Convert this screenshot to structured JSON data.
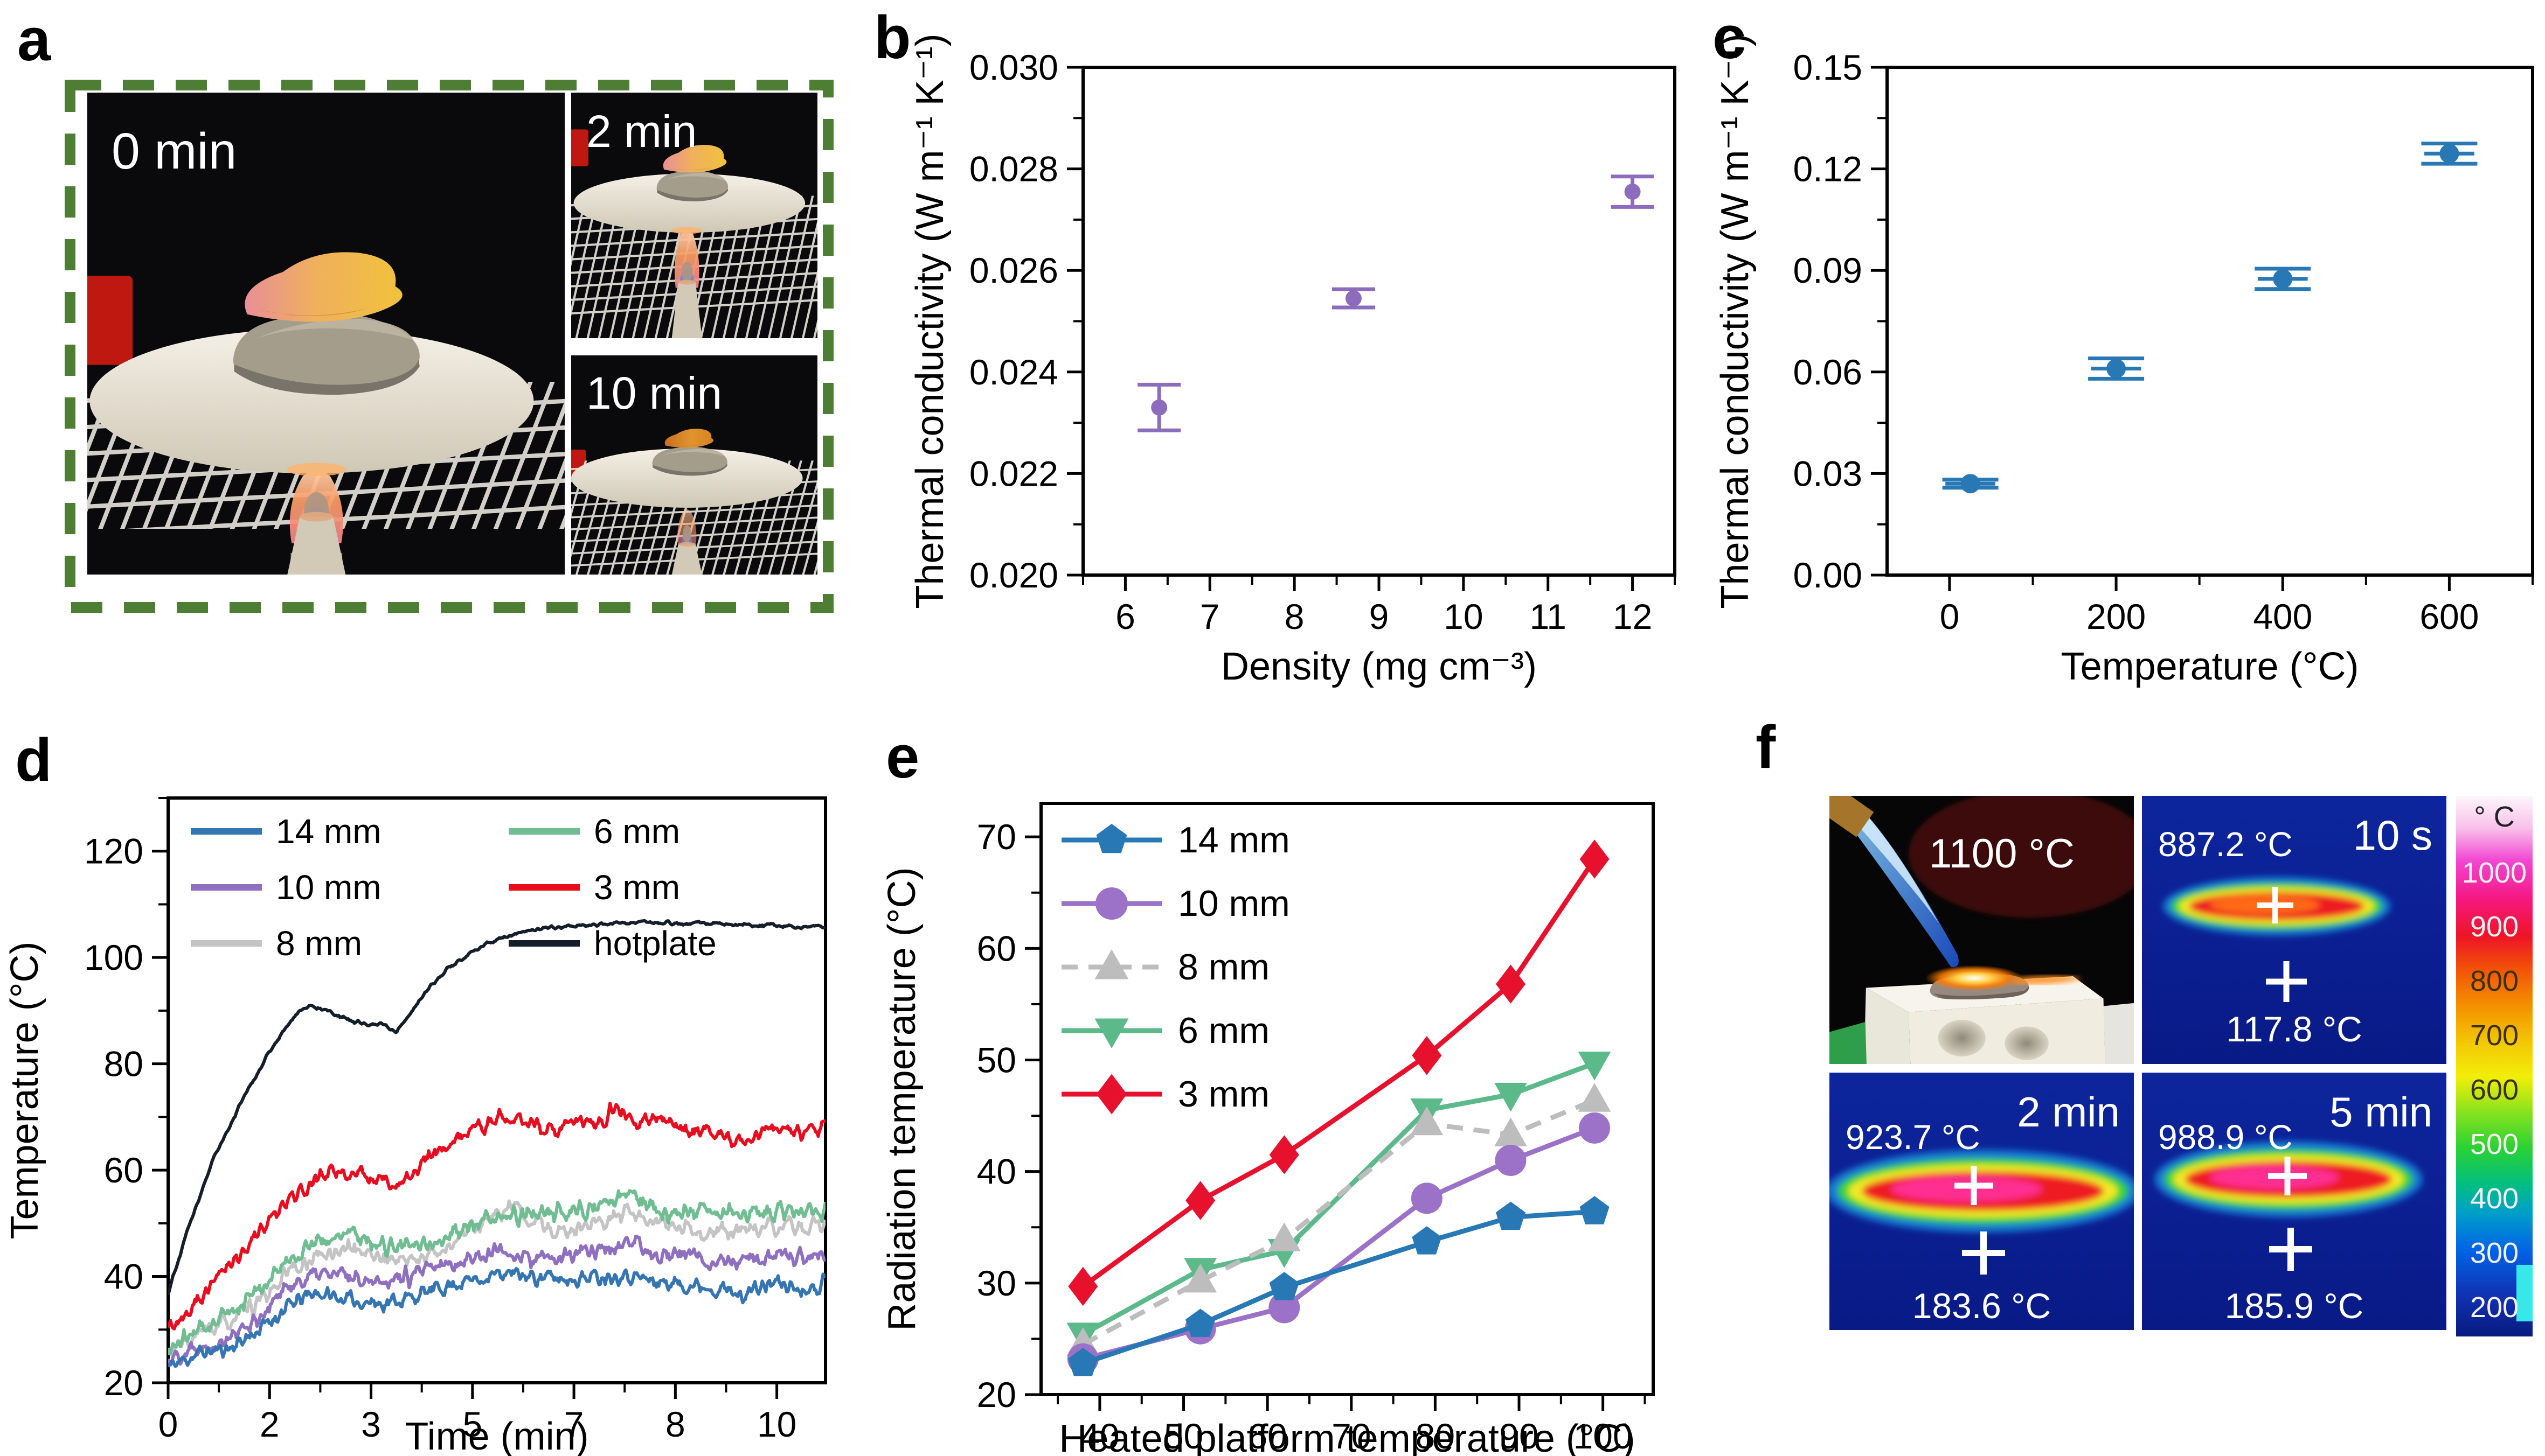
{
  "panels": {
    "a": {
      "letter": "a",
      "photos": [
        {
          "label": "0 min"
        },
        {
          "label": "2 min"
        },
        {
          "label": "10 min"
        }
      ]
    },
    "b": {
      "letter": "b"
    },
    "c": {
      "letter": "c"
    },
    "d": {
      "letter": "d"
    },
    "e": {
      "letter": "e"
    },
    "f": {
      "letter": "f",
      "flame_label": "1100 °C",
      "thermal": [
        {
          "time": "10 s",
          "spot_temp": "887.2 °C",
          "ref_temp": "117.8 °C"
        },
        {
          "time": "2 min",
          "spot_temp": "923.7 °C",
          "ref_temp": "183.6 °C"
        },
        {
          "time": "5 min",
          "spot_temp": "988.9 °C",
          "ref_temp": "185.9 °C"
        }
      ],
      "colorbar": {
        "unit": "° C",
        "ticks": [
          {
            "text": "1000",
            "tone": "light"
          },
          {
            "text": "900",
            "tone": "light"
          },
          {
            "text": "800",
            "tone": "dark"
          },
          {
            "text": "700",
            "tone": "dark"
          },
          {
            "text": "600",
            "tone": "dark"
          },
          {
            "text": "500",
            "tone": "light"
          },
          {
            "text": "400",
            "tone": "light"
          },
          {
            "text": "300",
            "tone": "light"
          },
          {
            "text": "200",
            "tone": "light"
          }
        ]
      }
    }
  },
  "chart_data": [
    {
      "id": "b",
      "type": "scatter",
      "xlabel": "Density (mg cm⁻³)",
      "ylabel": "Thermal conductivity (W m⁻¹ K⁻¹)",
      "xlim": [
        5.5,
        12.5
      ],
      "ylim": [
        0.02,
        0.03
      ],
      "xticks": [
        6,
        7,
        8,
        9,
        10,
        11,
        12
      ],
      "xminor": 0.5,
      "yticks": [
        0.02,
        0.022,
        0.024,
        0.026,
        0.028,
        0.03
      ],
      "ytick_labels": [
        "0.020",
        "0.022",
        "0.024",
        "0.026",
        "0.028",
        "0.030"
      ],
      "yminor": 0.001,
      "color": "#8d6cbd",
      "points": [
        {
          "x": 6.4,
          "y": 0.0233,
          "yerr": 0.00045
        },
        {
          "x": 8.7,
          "y": 0.02545,
          "yerr": 0.00018
        },
        {
          "x": 12.0,
          "y": 0.02755,
          "yerr": 0.0003
        }
      ]
    },
    {
      "id": "c",
      "type": "scatter",
      "xlabel": "Temperature (°C)",
      "ylabel": "Thermal conductivity (W m⁻¹ K⁻¹)",
      "xlim": [
        -75,
        700
      ],
      "ylim": [
        0,
        0.15
      ],
      "xticks": [
        0,
        200,
        400,
        600
      ],
      "xminor": 100,
      "yticks": [
        0,
        0.03,
        0.06,
        0.09,
        0.12,
        0.15
      ],
      "ytick_labels": [
        "0.00",
        "0.03",
        "0.06",
        "0.09",
        "0.12",
        "0.15"
      ],
      "yminor": 0.015,
      "color": "#2878b5",
      "points": [
        {
          "x": 25,
          "y": 0.027,
          "xerr": 30,
          "yerr": 0.0012
        },
        {
          "x": 200,
          "y": 0.061,
          "xerr": 30,
          "yerr": 0.003
        },
        {
          "x": 400,
          "y": 0.0875,
          "xerr": 30,
          "yerr": 0.003
        },
        {
          "x": 600,
          "y": 0.1245,
          "xerr": 30,
          "yerr": 0.003
        }
      ]
    },
    {
      "id": "d",
      "type": "line-noisy",
      "xlabel": "Time (min)",
      "ylabel": "Temperature (°C)",
      "xlim": [
        0,
        10.8
      ],
      "ylim": [
        20,
        130
      ],
      "xtick_positions": [
        0,
        1.6667,
        3.3333,
        5,
        6.6667,
        8.3333,
        10
      ],
      "xtick_labels": [
        "0",
        "2",
        "3",
        "5",
        "7",
        "8",
        "10"
      ],
      "xminor": 0.83333,
      "yticks": [
        20,
        40,
        60,
        80,
        100,
        120
      ],
      "yminor": 10,
      "legend_columns": [
        [
          "14 mm",
          "10 mm",
          "8 mm"
        ],
        [
          "6 mm",
          "3 mm",
          "hotplate"
        ]
      ],
      "series": [
        {
          "name": "8 mm",
          "color": "#c4c4c4",
          "noise": 2.4,
          "seed": 33,
          "keypoints": [
            [
              0,
              25.5
            ],
            [
              0.5,
              29
            ],
            [
              1,
              31.5
            ],
            [
              1.5,
              35
            ],
            [
              2,
              41
            ],
            [
              2.5,
              44
            ],
            [
              3,
              45.5
            ],
            [
              3.5,
              43.5
            ],
            [
              4,
              43
            ],
            [
              4.5,
              45
            ],
            [
              5,
              49
            ],
            [
              5.7,
              53
            ],
            [
              6,
              50
            ],
            [
              6.5,
              48.5
            ],
            [
              7,
              50
            ],
            [
              7.5,
              51.5
            ],
            [
              8,
              50
            ],
            [
              8.5,
              48.5
            ],
            [
              9,
              48
            ],
            [
              9.5,
              49
            ],
            [
              10,
              49
            ],
            [
              10.8,
              49.5
            ]
          ]
        },
        {
          "name": "10 mm",
          "color": "#8f6fc0",
          "noise": 2.4,
          "seed": 22,
          "keypoints": [
            [
              0,
              24.5
            ],
            [
              0.5,
              27
            ],
            [
              1,
              28.5
            ],
            [
              1.5,
              32.5
            ],
            [
              2,
              38.5
            ],
            [
              2.5,
              40.5
            ],
            [
              3,
              40
            ],
            [
              3.5,
              39.5
            ],
            [
              4,
              40
            ],
            [
              4.5,
              42
            ],
            [
              5,
              43.5
            ],
            [
              5.5,
              45
            ],
            [
              6,
              43
            ],
            [
              6.5,
              43.5
            ],
            [
              7,
              45
            ],
            [
              7.5,
              46
            ],
            [
              8,
              44.5
            ],
            [
              8.5,
              44
            ],
            [
              9,
              43
            ],
            [
              9.5,
              43
            ],
            [
              10,
              43.5
            ],
            [
              10.8,
              44
            ]
          ]
        },
        {
          "name": "14 mm",
          "color": "#3575b2",
          "noise": 2.2,
          "seed": 11,
          "keypoints": [
            [
              0,
              23
            ],
            [
              0.5,
              25.5
            ],
            [
              1,
              26.5
            ],
            [
              1.5,
              30
            ],
            [
              2,
              34.5
            ],
            [
              2.4,
              37
            ],
            [
              3,
              35.5
            ],
            [
              3.5,
              35
            ],
            [
              4,
              36
            ],
            [
              4.5,
              38
            ],
            [
              5,
              39.5
            ],
            [
              5.5,
              40.5
            ],
            [
              6,
              40
            ],
            [
              6.5,
              39.5
            ],
            [
              7,
              40
            ],
            [
              7.5,
              40.5
            ],
            [
              8,
              39
            ],
            [
              8.5,
              38.5
            ],
            [
              9,
              38
            ],
            [
              9.4,
              36.5
            ],
            [
              10,
              39
            ],
            [
              10.4,
              37.5
            ],
            [
              10.8,
              39
            ]
          ]
        },
        {
          "name": "6 mm",
          "color": "#70bd92",
          "noise": 2.5,
          "seed": 44,
          "keypoints": [
            [
              0,
              26
            ],
            [
              0.5,
              30
            ],
            [
              1,
              33
            ],
            [
              1.5,
              37.5
            ],
            [
              2,
              43.5
            ],
            [
              2.5,
              46.5
            ],
            [
              3,
              48
            ],
            [
              3.5,
              46
            ],
            [
              4,
              45.5
            ],
            [
              4.5,
              47
            ],
            [
              5,
              49.5
            ],
            [
              5.5,
              51
            ],
            [
              6,
              52
            ],
            [
              6.5,
              51.5
            ],
            [
              7,
              53
            ],
            [
              7.6,
              55.5
            ],
            [
              8,
              52.5
            ],
            [
              8.5,
              52
            ],
            [
              9,
              52.5
            ],
            [
              9.5,
              52
            ],
            [
              10,
              52.5
            ],
            [
              10.8,
              52
            ]
          ]
        },
        {
          "name": "3 mm",
          "color": "#e80c1e",
          "noise": 2.2,
          "seed": 55,
          "keypoints": [
            [
              0,
              30
            ],
            [
              0.5,
              36
            ],
            [
              1,
              42
            ],
            [
              1.5,
              48.5
            ],
            [
              2,
              54.5
            ],
            [
              2.3,
              57.5
            ],
            [
              2.7,
              59.5
            ],
            [
              3,
              59.5
            ],
            [
              3.3,
              58.5
            ],
            [
              3.7,
              57
            ],
            [
              4,
              60
            ],
            [
              4.5,
              64
            ],
            [
              5,
              67.5
            ],
            [
              5.5,
              70
            ],
            [
              6,
              69
            ],
            [
              6.3,
              67
            ],
            [
              6.7,
              69.5
            ],
            [
              7,
              69
            ],
            [
              7.4,
              71.5
            ],
            [
              7.7,
              69
            ],
            [
              8,
              69.5
            ],
            [
              8.5,
              68
            ],
            [
              9,
              66.5
            ],
            [
              9.4,
              65.5
            ],
            [
              10,
              68.5
            ],
            [
              10.4,
              66.5
            ],
            [
              10.8,
              68
            ]
          ]
        },
        {
          "name": "hotplate",
          "color": "#141e2a",
          "noise": 0.5,
          "seed": 66,
          "keypoints": [
            [
              0,
              37
            ],
            [
              0.3,
              48
            ],
            [
              0.7,
              61
            ],
            [
              1,
              68
            ],
            [
              1.3,
              75
            ],
            [
              1.6,
              81
            ],
            [
              1.9,
              86.5
            ],
            [
              2.15,
              90
            ],
            [
              2.35,
              91
            ],
            [
              2.6,
              90
            ],
            [
              2.9,
              88.5
            ],
            [
              3.2,
              87.5
            ],
            [
              3.5,
              87.5
            ],
            [
              3.75,
              86
            ],
            [
              4,
              90
            ],
            [
              4.3,
              94.5
            ],
            [
              4.6,
              98
            ],
            [
              5,
              101
            ],
            [
              5.4,
              103.5
            ],
            [
              5.8,
              104.8
            ],
            [
              6.2,
              105.5
            ],
            [
              6.6,
              106
            ],
            [
              7,
              106.2
            ],
            [
              7.5,
              106.5
            ],
            [
              8,
              106.8
            ],
            [
              8.5,
              106.3
            ],
            [
              9,
              106.4
            ],
            [
              9.5,
              106
            ],
            [
              10,
              106
            ],
            [
              10.4,
              105.6
            ],
            [
              10.8,
              105.8
            ]
          ]
        }
      ]
    },
    {
      "id": "e",
      "type": "line-markers",
      "xlabel": "Heated platform temperature (°C)",
      "ylabel": "Radiation temperature (°C)",
      "xlim": [
        33,
        106
      ],
      "ylim": [
        20,
        73
      ],
      "xticks": [
        40,
        50,
        60,
        70,
        80,
        90,
        100
      ],
      "xminor": 5,
      "yticks": [
        20,
        30,
        40,
        50,
        60,
        70
      ],
      "yminor": 5,
      "x": [
        38,
        52,
        62,
        79,
        89,
        99
      ],
      "series": [
        {
          "name": "14 mm",
          "color": "#2878b5",
          "marker": "pentagon",
          "dash": false,
          "values": [
            22.8,
            26.3,
            29.6,
            33.7,
            35.9,
            36.4
          ]
        },
        {
          "name": "10 mm",
          "color": "#9b72c8",
          "marker": "circle",
          "dash": false,
          "values": [
            23.2,
            25.9,
            27.8,
            37.6,
            41.0,
            43.9
          ]
        },
        {
          "name": "8 mm",
          "color": "#bdbdbd",
          "marker": "triangle-up",
          "dash": true,
          "values": [
            24.5,
            30.2,
            33.9,
            44.3,
            43.3,
            46.4
          ]
        },
        {
          "name": "6 mm",
          "color": "#5cb98a",
          "marker": "triangle-down",
          "dash": false,
          "values": [
            25.4,
            31.2,
            32.9,
            45.5,
            46.9,
            49.7
          ]
        },
        {
          "name": "3 mm",
          "color": "#e8112d",
          "marker": "diamond",
          "dash": false,
          "values": [
            29.7,
            37.4,
            41.5,
            50.4,
            56.8,
            68.0
          ]
        }
      ]
    }
  ]
}
